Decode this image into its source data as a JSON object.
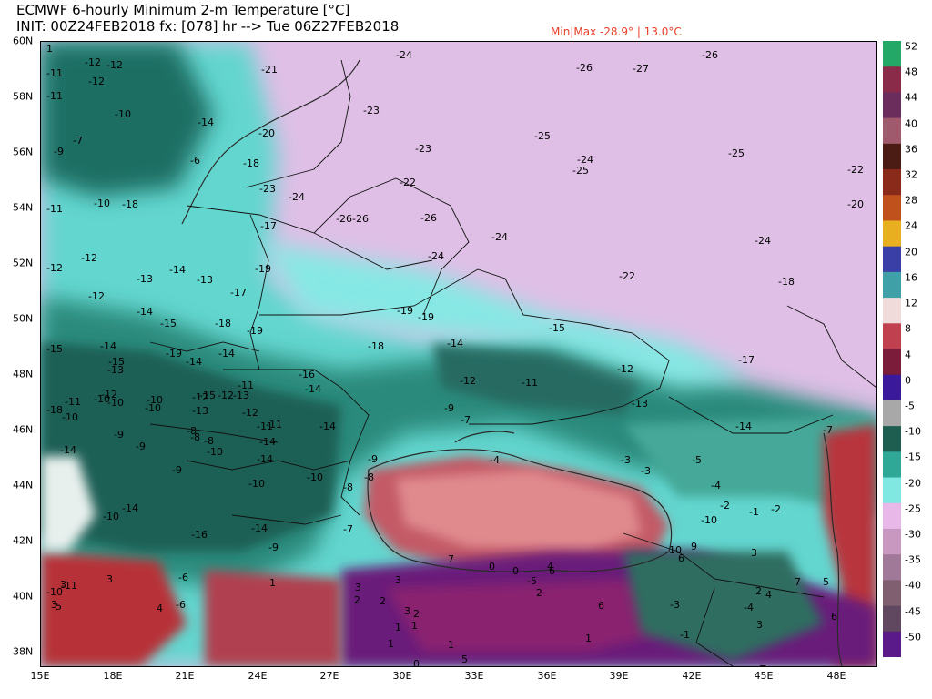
{
  "header": {
    "title": "ECMWF 6-hourly Minimum 2-m Temperature [°C]",
    "init_line": "INIT: 00Z24FEB2018 fx: [078] hr --> Tue 06Z27FEB2018",
    "minmax": "Min|Max -28.9° | 13.0°C"
  },
  "axes": {
    "lat_labels": [
      "60N",
      "58N",
      "56N",
      "54N",
      "52N",
      "50N",
      "48N",
      "46N",
      "44N",
      "42N",
      "40N",
      "38N"
    ],
    "lon_labels": [
      "15E",
      "18E",
      "21E",
      "24E",
      "27E",
      "30E",
      "33E",
      "36E",
      "39E",
      "42E",
      "45E",
      "48E"
    ]
  },
  "colorbar": {
    "labels": [
      "52",
      "48",
      "44",
      "40",
      "36",
      "32",
      "28",
      "24",
      "20",
      "16",
      "12",
      "8",
      "4",
      "0",
      "-5",
      "-10",
      "-15",
      "-20",
      "-25",
      "-30",
      "-35",
      "-40",
      "-45",
      "-50"
    ],
    "colors": [
      "#23a868",
      "#8a2b4a",
      "#6b2d5c",
      "#a05a6e",
      "#4a1c14",
      "#8a2a1a",
      "#c0501c",
      "#e8b020",
      "#3a3fa8",
      "#3fa0a8",
      "#f0dada",
      "#c04050",
      "#7a1c3a",
      "#3a1a9a",
      "#a8a8a8",
      "#1e5e50",
      "#30a898",
      "#80e8e0",
      "#e8b8e8",
      "#c898c0",
      "#a07898",
      "#806070",
      "#604860",
      "#5a1a8a"
    ]
  },
  "map": {
    "icons": {
      "coastline": "coastline-lines",
      "borders": "country-border-lines"
    },
    "labels": [
      {
        "t": "-24"
      },
      {
        "t": "-26"
      },
      {
        "t": "-27"
      },
      {
        "t": "-26"
      },
      {
        "t": "-21"
      },
      {
        "t": "-12"
      },
      {
        "t": "-12"
      },
      {
        "t": "-11"
      },
      {
        "t": "-12"
      },
      {
        "t": "-11"
      },
      {
        "t": "-10"
      },
      {
        "t": "-23"
      },
      {
        "t": "-14"
      },
      {
        "t": "-20"
      },
      {
        "t": "-25"
      },
      {
        "t": "-9"
      },
      {
        "t": "-7"
      },
      {
        "t": "-23"
      },
      {
        "t": "-24"
      },
      {
        "t": "-25"
      },
      {
        "t": "-25"
      },
      {
        "t": "-22"
      },
      {
        "t": "-6"
      },
      {
        "t": "-18"
      },
      {
        "t": "-22"
      },
      {
        "t": "-20"
      },
      {
        "t": "-23"
      },
      {
        "t": "-24"
      },
      {
        "t": "-10"
      },
      {
        "t": "-18"
      },
      {
        "t": "-11"
      },
      {
        "t": "-26"
      },
      {
        "t": "-26"
      },
      {
        "t": "-26"
      },
      {
        "t": "-17"
      },
      {
        "t": "-24"
      },
      {
        "t": "-24"
      },
      {
        "t": "-12"
      },
      {
        "t": "-13"
      },
      {
        "t": "-14"
      },
      {
        "t": "-24"
      },
      {
        "t": "-12"
      },
      {
        "t": "-13"
      },
      {
        "t": "-19"
      },
      {
        "t": "-22"
      },
      {
        "t": "-18"
      },
      {
        "t": "-17"
      },
      {
        "t": "-12"
      },
      {
        "t": "-14"
      },
      {
        "t": "-15"
      },
      {
        "t": "-18"
      },
      {
        "t": "-19"
      },
      {
        "t": "-19"
      },
      {
        "t": "-19"
      },
      {
        "t": "-15"
      },
      {
        "t": "-12"
      },
      {
        "t": "-14"
      },
      {
        "t": "-17"
      },
      {
        "t": "-18"
      },
      {
        "t": "-14"
      },
      {
        "t": "-15"
      },
      {
        "t": "-14"
      },
      {
        "t": "-19"
      },
      {
        "t": "-14"
      },
      {
        "t": "-15"
      },
      {
        "t": "-13"
      },
      {
        "t": "-16"
      },
      {
        "t": "-12"
      },
      {
        "t": "-11"
      },
      {
        "t": "-12"
      },
      {
        "t": "-14"
      },
      {
        "t": "-10"
      },
      {
        "t": "-12"
      },
      {
        "t": "-13"
      },
      {
        "t": "-15"
      },
      {
        "t": "-10"
      },
      {
        "t": "-10"
      },
      {
        "t": "-10"
      },
      {
        "t": "-10"
      },
      {
        "t": "-12"
      },
      {
        "t": "-13"
      },
      {
        "t": "-9"
      },
      {
        "t": "-7"
      },
      {
        "t": "-13"
      },
      {
        "t": "-18"
      },
      {
        "t": "-11"
      },
      {
        "t": "-11"
      },
      {
        "t": "-12"
      },
      {
        "t": "-11"
      },
      {
        "t": "-14"
      },
      {
        "t": "-8"
      },
      {
        "t": "-14"
      },
      {
        "t": "-9"
      },
      {
        "t": "-10"
      },
      {
        "t": "-8"
      },
      {
        "t": "-8"
      },
      {
        "t": "-4"
      },
      {
        "t": "-11"
      },
      {
        "t": "-9"
      },
      {
        "t": "-14"
      },
      {
        "t": "-8"
      },
      {
        "t": "-9"
      },
      {
        "t": "-10"
      },
      {
        "t": "-10"
      },
      {
        "t": "-9"
      },
      {
        "t": "-3"
      },
      {
        "t": "-5"
      },
      {
        "t": "-3"
      },
      {
        "t": "-14"
      },
      {
        "t": "-7"
      },
      {
        "t": "-4"
      },
      {
        "t": "-14"
      },
      {
        "t": "-8"
      },
      {
        "t": "-2"
      },
      {
        "t": "-1"
      },
      {
        "t": "-2"
      },
      {
        "t": "-10"
      },
      {
        "t": "-16"
      },
      {
        "t": "-14"
      },
      {
        "t": "-14"
      },
      {
        "t": "-7"
      },
      {
        "t": "-9"
      },
      {
        "t": "-10"
      },
      {
        "t": "7"
      },
      {
        "t": "0"
      },
      {
        "t": "4"
      },
      {
        "t": "10"
      },
      {
        "t": "9"
      },
      {
        "t": "6"
      },
      {
        "t": "3"
      },
      {
        "t": "-11"
      },
      {
        "t": "-6"
      },
      {
        "t": "1"
      },
      {
        "t": "3"
      },
      {
        "t": "7"
      },
      {
        "t": "5"
      },
      {
        "t": "-10"
      },
      {
        "t": "3"
      },
      {
        "t": "-6"
      },
      {
        "t": "3"
      },
      {
        "t": "3"
      },
      {
        "t": "-5"
      },
      {
        "t": "2"
      },
      {
        "t": "4"
      },
      {
        "t": "3"
      },
      {
        "t": "2"
      },
      {
        "t": "2"
      },
      {
        "t": "3"
      },
      {
        "t": "2"
      },
      {
        "t": "-3"
      },
      {
        "t": "-4"
      },
      {
        "t": "3"
      },
      {
        "t": "6"
      },
      {
        "t": "5"
      },
      {
        "t": "4"
      },
      {
        "t": "1"
      },
      {
        "t": "1"
      },
      {
        "t": "1"
      },
      {
        "t": "1"
      },
      {
        "t": "-1"
      },
      {
        "t": "0"
      },
      {
        "t": "1"
      },
      {
        "t": "6"
      },
      {
        "t": "6"
      },
      {
        "t": "2"
      },
      {
        "t": "-1"
      },
      {
        "t": "2"
      },
      {
        "t": "5"
      },
      {
        "t": "6"
      },
      {
        "t": "0"
      },
      {
        "t": "2"
      },
      {
        "t": "1"
      }
    ]
  }
}
